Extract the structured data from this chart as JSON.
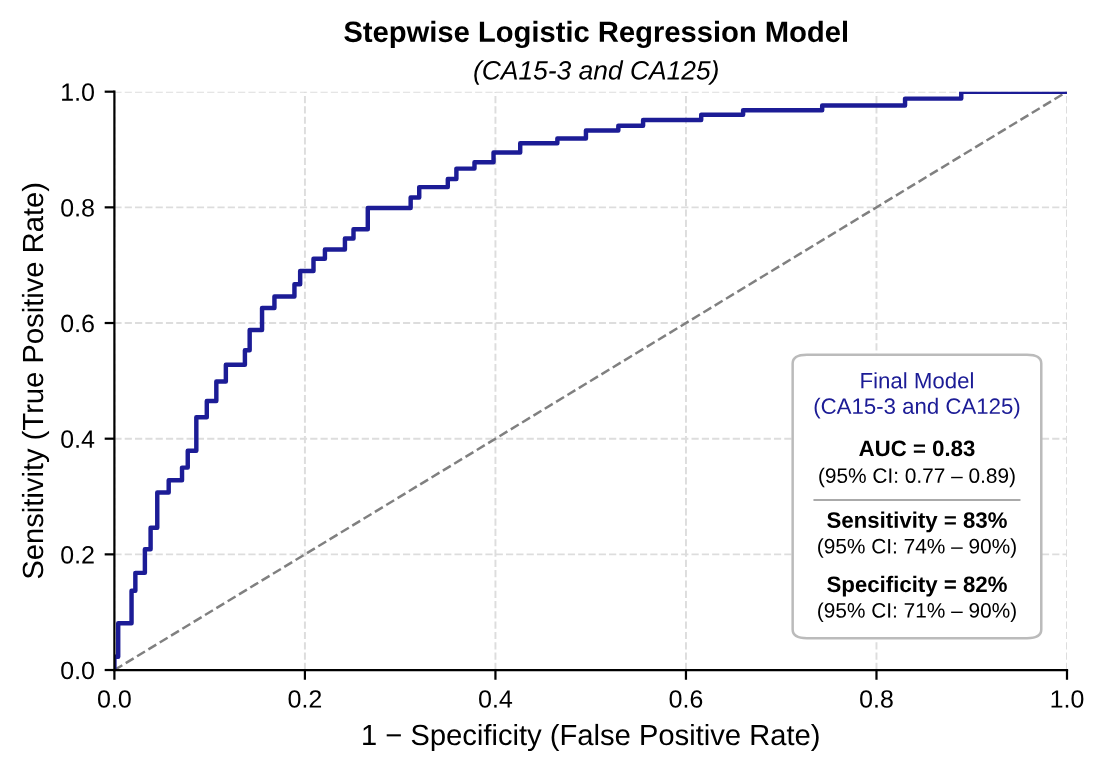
{
  "chart_data": {
    "type": "step",
    "title": "Stepwise Logistic Regression Model",
    "subtitle": "(CA15-3 and CA125)",
    "xlabel": "1 − Specificity (False Positive Rate)",
    "ylabel": "Sensitivity (True Positive Rate)",
    "series": [
      {
        "color": "#1c1c96",
        "line_style": "solid",
        "x": [
          0,
          0,
          0.004,
          0.018,
          0.022,
          0.032,
          0.038,
          0.045,
          0.057,
          0.071,
          0.077,
          0.086,
          0.097,
          0.107,
          0.117,
          0.137,
          0.142,
          0.155,
          0.168,
          0.189,
          0.195,
          0.209,
          0.221,
          0.242,
          0.251,
          0.266,
          0.311,
          0.32,
          0.35,
          0.359,
          0.378,
          0.398,
          0.426,
          0.465,
          0.495,
          0.529,
          0.555,
          0.616,
          0.66,
          0.743,
          0.83,
          0.889,
          1.0
        ],
        "values": [
          0,
          0.023,
          0.081,
          0.137,
          0.168,
          0.209,
          0.246,
          0.307,
          0.328,
          0.35,
          0.379,
          0.437,
          0.465,
          0.499,
          0.528,
          0.553,
          0.588,
          0.626,
          0.646,
          0.667,
          0.69,
          0.711,
          0.727,
          0.746,
          0.762,
          0.799,
          0.817,
          0.835,
          0.849,
          0.867,
          0.878,
          0.895,
          0.911,
          0.919,
          0.933,
          0.941,
          0.951,
          0.96,
          0.968,
          0.976,
          0.988,
          1.0,
          1.0
        ]
      },
      {
        "type": "line",
        "color": "#808080",
        "line_style": "dashed",
        "x": [
          0,
          1
        ],
        "values": [
          0,
          1
        ]
      }
    ],
    "xlim": [
      0,
      1
    ],
    "ylim": [
      0,
      1
    ],
    "xticks": [
      {
        "value": 0,
        "label": "0.0"
      },
      {
        "value": 0.2,
        "label": "0.2"
      },
      {
        "value": 0.4,
        "label": "0.4"
      },
      {
        "value": 0.6,
        "label": "0.6"
      },
      {
        "value": 0.8,
        "label": "0.8"
      },
      {
        "value": 1,
        "label": "1.0"
      }
    ],
    "yticks": [
      {
        "value": 0,
        "label": "0.0"
      },
      {
        "value": 0.2,
        "label": "0.2"
      },
      {
        "value": 0.4,
        "label": "0.4"
      },
      {
        "value": 0.6,
        "label": "0.6"
      },
      {
        "value": 0.8,
        "label": "0.8"
      },
      {
        "value": 1,
        "label": "1.0"
      }
    ],
    "grid": true,
    "annotations": [
      "Final Model\n(CA15-3 and CA125)",
      "AUC = 0.83",
      "(95% CI: 0.77 – 0.89)",
      "Sensitivity = 83%",
      "(95% CI: 74% – 90%)",
      "Specificity = 82%",
      "(95% CI: 71% – 90%)"
    ]
  }
}
